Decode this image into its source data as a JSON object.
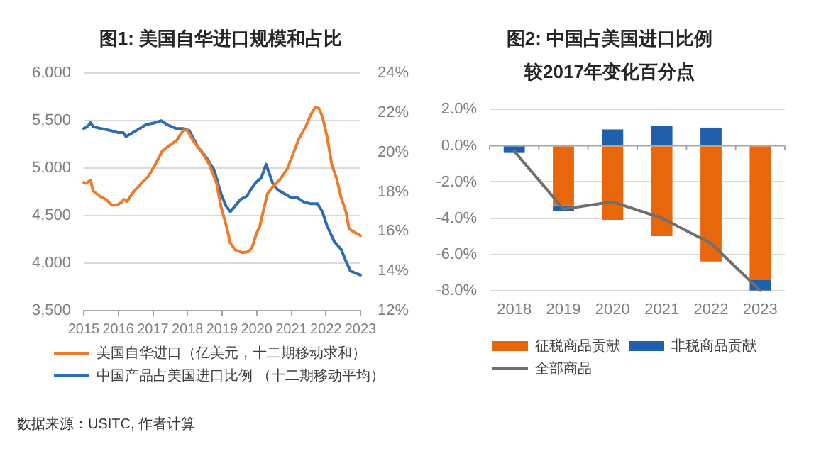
{
  "chart_data": [
    {
      "type": "line",
      "title": "图1: 美国自华进口规模和占比",
      "xlim": [
        2015,
        2023
      ],
      "xticks": [
        2015,
        2016,
        2017,
        2018,
        2019,
        2020,
        2021,
        2022,
        2023
      ],
      "ylim": [
        3500,
        6000
      ],
      "yticks": [
        {
          "value": 3500,
          "label": "3,500"
        },
        {
          "value": 4000,
          "label": "4,000"
        },
        {
          "value": 4500,
          "label": "4,500"
        },
        {
          "value": 5000,
          "label": "5,000"
        },
        {
          "value": 5500,
          "label": "5,500"
        },
        {
          "value": 6000,
          "label": "6,000"
        }
      ],
      "y2lim": [
        12,
        24
      ],
      "y2ticks": [
        {
          "value": 12,
          "label": "12%"
        },
        {
          "value": 14,
          "label": "14%"
        },
        {
          "value": 16,
          "label": "16%"
        },
        {
          "value": 18,
          "label": "18%"
        },
        {
          "value": 20,
          "label": "20%"
        },
        {
          "value": 22,
          "label": "22%"
        },
        {
          "value": 24,
          "label": "24%"
        }
      ],
      "grid": "y",
      "legend": "bottom",
      "marker": "none",
      "series": [
        {
          "name": "美国自华进口（亿美元，十二期移动求和）",
          "color": "#ee7a2a",
          "x": [
            2015.0,
            2015.07,
            2015.14,
            2015.2,
            2015.27,
            2015.44,
            2015.64,
            2015.82,
            2015.95,
            2016.09,
            2016.16,
            2016.25,
            2016.46,
            2016.66,
            2016.86,
            2017.07,
            2017.27,
            2017.48,
            2017.68,
            2017.88,
            2017.99,
            2018.16,
            2018.43,
            2018.63,
            2018.84,
            2018.97,
            2019.11,
            2019.24,
            2019.38,
            2019.59,
            2019.76,
            2019.86,
            2019.99,
            2020.09,
            2020.2,
            2020.31,
            2020.47,
            2020.67,
            2020.88,
            2021.01,
            2021.22,
            2021.42,
            2021.56,
            2021.69,
            2021.8,
            2021.9,
            2022.03,
            2022.17,
            2022.31,
            2022.44,
            2022.58,
            2022.67,
            2022.85,
            2023.0
          ],
          "values": [
            4850,
            4840,
            4860,
            4870,
            4760,
            4710,
            4670,
            4610,
            4610,
            4640,
            4670,
            4650,
            4760,
            4840,
            4910,
            5040,
            5180,
            5240,
            5290,
            5400,
            5400,
            5290,
            5160,
            5040,
            4840,
            4590,
            4410,
            4210,
            4140,
            4110,
            4120,
            4160,
            4310,
            4390,
            4560,
            4730,
            4810,
            4880,
            4990,
            5110,
            5310,
            5440,
            5560,
            5640,
            5630,
            5540,
            5340,
            5040,
            4890,
            4690,
            4540,
            4360,
            4320,
            4290
          ]
        },
        {
          "name": "中国产品占美国进口比例 （十二期移动平均）",
          "color": "#2c6cb5",
          "axis": "y2",
          "x": [
            2015.0,
            2015.1,
            2015.2,
            2015.27,
            2015.5,
            2015.78,
            2015.98,
            2016.14,
            2016.22,
            2016.32,
            2016.52,
            2016.8,
            2017.07,
            2017.24,
            2017.41,
            2017.68,
            2017.88,
            2018.05,
            2018.29,
            2018.56,
            2018.77,
            2018.97,
            2019.11,
            2019.24,
            2019.38,
            2019.52,
            2019.72,
            2019.86,
            2019.99,
            2020.13,
            2020.27,
            2020.33,
            2020.47,
            2020.61,
            2020.81,
            2021.01,
            2021.18,
            2021.35,
            2021.56,
            2021.76,
            2021.9,
            2022.03,
            2022.24,
            2022.44,
            2022.58,
            2022.71,
            2022.85,
            2023.0
          ],
          "values": [
            21.2,
            21.3,
            21.5,
            21.3,
            21.2,
            21.1,
            21.0,
            21.0,
            20.8,
            20.9,
            21.1,
            21.4,
            21.5,
            21.6,
            21.4,
            21.2,
            21.2,
            21.1,
            20.3,
            19.7,
            19.1,
            17.9,
            17.3,
            17.0,
            17.3,
            17.6,
            17.8,
            18.2,
            18.5,
            18.7,
            19.4,
            19.1,
            18.4,
            18.1,
            17.9,
            17.7,
            17.7,
            17.5,
            17.4,
            17.4,
            17.0,
            16.3,
            15.5,
            15.1,
            14.5,
            14.0,
            13.9,
            13.8
          ]
        }
      ],
      "annotations": [
        "数据来源：USITC, 作者计算"
      ]
    },
    {
      "type": "bar",
      "title": "图2: 中国占美国进口比例",
      "subtitle": "较2017年变化百分点",
      "categories": [
        "2018",
        "2019",
        "2020",
        "2021",
        "2022",
        "2023"
      ],
      "stacked": true,
      "ylim": [
        -8,
        2
      ],
      "yticks": [
        {
          "value": -8,
          "label": "-8.0%"
        },
        {
          "value": -6,
          "label": "-6.0%"
        },
        {
          "value": -4,
          "label": "-4.0%"
        },
        {
          "value": -2,
          "label": "-2.0%"
        },
        {
          "value": 0,
          "label": "0.0%"
        },
        {
          "value": 2,
          "label": "2.0%"
        }
      ],
      "grid": "y",
      "legend": "bottom",
      "marker": "none",
      "series": [
        {
          "name": "征税商品贡献",
          "color": "#e8670c",
          "values": [
            null,
            -3.3,
            -4.1,
            -5.0,
            -6.4,
            -7.4
          ]
        },
        {
          "name": "非税商品贡献",
          "color": "#1f5fab",
          "values": [
            -0.4,
            -0.3,
            0.9,
            1.1,
            1.0,
            -0.6
          ]
        },
        {
          "name": "全部商品",
          "type": "line",
          "color": "#6f6f6f",
          "values": [
            -0.3,
            -3.5,
            -3.1,
            -4.0,
            -5.4,
            -8.0
          ]
        }
      ]
    }
  ]
}
